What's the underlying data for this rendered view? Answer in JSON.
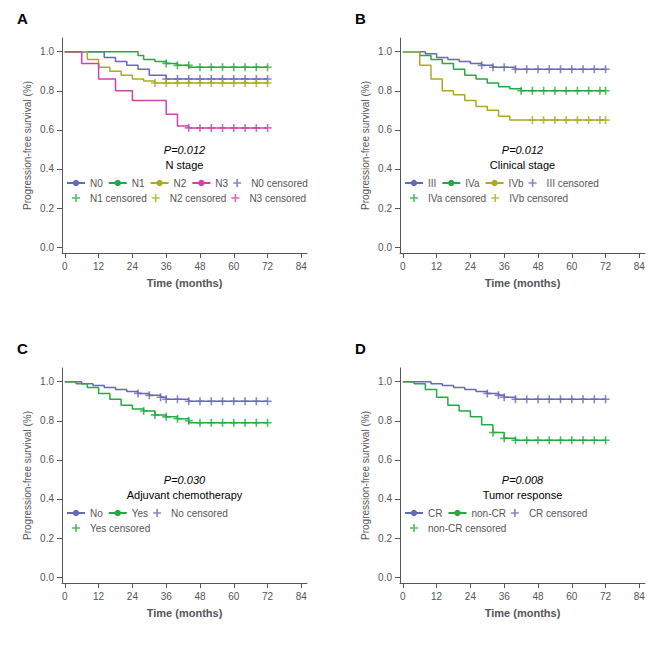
{
  "chart_data": [
    {
      "type": "step",
      "title": "A",
      "xlabel": "Time (months)",
      "ylabel": "Progression-free survival (%)",
      "xlim": [
        -1,
        86
      ],
      "xticks": [
        0,
        12,
        24,
        36,
        48,
        60,
        72,
        84
      ],
      "ylim": [
        -0.03,
        1.07
      ],
      "yticks": [
        {
          "value": 0.0,
          "label": "0.0"
        },
        0.2,
        0.4,
        0.6,
        0.8,
        {
          "value": 1.0,
          "label": "1.0"
        }
      ],
      "grid": false,
      "legend": "lower center",
      "annotations": [
        "P=0.012",
        "N stage"
      ],
      "series": [
        {
          "name": "N0",
          "type": "step",
          "color": "#6868b8",
          "x": [
            0,
            14,
            18,
            22,
            26,
            30,
            36,
            72
          ],
          "values": [
            1.0,
            0.97,
            0.95,
            0.93,
            0.91,
            0.88,
            0.86,
            0.86
          ]
        },
        {
          "name": "N1",
          "type": "step",
          "color": "#22aa44",
          "x": [
            0,
            24,
            26,
            28,
            32,
            36,
            40,
            44,
            72
          ],
          "values": [
            1.0,
            1.0,
            0.98,
            0.96,
            0.95,
            0.94,
            0.93,
            0.92,
            0.92
          ]
        },
        {
          "name": "N2",
          "type": "step",
          "color": "#aaaa22",
          "x": [
            0,
            8,
            12,
            16,
            20,
            24,
            28,
            32,
            72
          ],
          "values": [
            1.0,
            0.96,
            0.92,
            0.9,
            0.88,
            0.86,
            0.85,
            0.84,
            0.84
          ]
        },
        {
          "name": "N3",
          "type": "step",
          "color": "#cc44aa",
          "x": [
            0,
            6,
            12,
            18,
            24,
            30,
            36,
            40,
            44,
            72
          ],
          "values": [
            1.0,
            0.94,
            0.86,
            0.8,
            0.75,
            0.75,
            0.68,
            0.62,
            0.61,
            0.61
          ]
        },
        {
          "name": "N0 censored",
          "type": "scatter",
          "marker": "plus",
          "color": "#6868b8",
          "x": [
            36,
            40,
            44,
            48,
            52,
            56,
            60,
            64,
            68,
            72
          ],
          "values": [
            0.86,
            0.86,
            0.86,
            0.86,
            0.86,
            0.86,
            0.86,
            0.86,
            0.86,
            0.86
          ]
        },
        {
          "name": "N1 censored",
          "type": "scatter",
          "marker": "plus",
          "color": "#22aa44",
          "x": [
            36,
            40,
            44,
            48,
            52,
            56,
            60,
            64,
            68,
            72
          ],
          "values": [
            0.94,
            0.93,
            0.93,
            0.92,
            0.92,
            0.92,
            0.92,
            0.92,
            0.92,
            0.92
          ]
        },
        {
          "name": "N2 censored",
          "type": "scatter",
          "marker": "plus",
          "color": "#aaaa22",
          "x": [
            32,
            36,
            40,
            44,
            48,
            52,
            56,
            60,
            64,
            68,
            72
          ],
          "values": [
            0.84,
            0.84,
            0.84,
            0.84,
            0.84,
            0.84,
            0.84,
            0.84,
            0.84,
            0.84,
            0.84
          ]
        },
        {
          "name": "N3 censored",
          "type": "scatter",
          "marker": "plus",
          "color": "#cc44aa",
          "x": [
            44,
            48,
            52,
            56,
            60,
            64,
            68,
            72
          ],
          "values": [
            0.61,
            0.61,
            0.61,
            0.61,
            0.61,
            0.61,
            0.61,
            0.61
          ]
        }
      ]
    },
    {
      "type": "step",
      "title": "B",
      "xlabel": "Time (months)",
      "ylabel": "Progression-free survival (%)",
      "xlim": [
        -1,
        86
      ],
      "xticks": [
        0,
        12,
        24,
        36,
        48,
        60,
        72,
        84
      ],
      "ylim": [
        -0.03,
        1.07
      ],
      "yticks": [
        {
          "value": 0.0,
          "label": "0.0"
        },
        0.2,
        0.4,
        0.6,
        0.8,
        {
          "value": 1.0,
          "label": "1.0"
        }
      ],
      "grid": false,
      "legend": "lower center",
      "annotations": [
        "P=0.012",
        "Clinical stage"
      ],
      "series": [
        {
          "name": "III",
          "type": "step",
          "color": "#6868b8",
          "x": [
            0,
            8,
            12,
            16,
            20,
            24,
            28,
            32,
            36,
            40,
            72
          ],
          "values": [
            1.0,
            0.99,
            0.97,
            0.96,
            0.95,
            0.94,
            0.93,
            0.92,
            0.92,
            0.91,
            0.91
          ]
        },
        {
          "name": "IVa",
          "type": "step",
          "color": "#22aa44",
          "x": [
            0,
            6,
            10,
            14,
            18,
            22,
            26,
            30,
            34,
            38,
            42,
            72
          ],
          "values": [
            1.0,
            0.98,
            0.96,
            0.94,
            0.91,
            0.88,
            0.86,
            0.84,
            0.82,
            0.81,
            0.8,
            0.8
          ]
        },
        {
          "name": "IVb",
          "type": "step",
          "color": "#aaaa22",
          "x": [
            0,
            6,
            10,
            14,
            18,
            22,
            26,
            30,
            34,
            38,
            44,
            72
          ],
          "values": [
            1.0,
            0.93,
            0.86,
            0.8,
            0.78,
            0.75,
            0.72,
            0.7,
            0.67,
            0.65,
            0.65,
            0.65
          ]
        },
        {
          "name": "III censored",
          "type": "scatter",
          "marker": "plus",
          "color": "#6868b8",
          "x": [
            28,
            32,
            36,
            40,
            44,
            48,
            52,
            56,
            60,
            64,
            68,
            72
          ],
          "values": [
            0.93,
            0.92,
            0.92,
            0.91,
            0.91,
            0.91,
            0.91,
            0.91,
            0.91,
            0.91,
            0.91,
            0.91
          ]
        },
        {
          "name": "IVa censored",
          "type": "scatter",
          "marker": "plus",
          "color": "#22aa44",
          "x": [
            42,
            46,
            50,
            54,
            58,
            62,
            66,
            70,
            72
          ],
          "values": [
            0.8,
            0.8,
            0.8,
            0.8,
            0.8,
            0.8,
            0.8,
            0.8,
            0.8
          ]
        },
        {
          "name": "IVb censored",
          "type": "scatter",
          "marker": "plus",
          "color": "#aaaa22",
          "x": [
            46,
            50,
            54,
            58,
            62,
            66,
            70,
            72
          ],
          "values": [
            0.65,
            0.65,
            0.65,
            0.65,
            0.65,
            0.65,
            0.65,
            0.65
          ]
        }
      ]
    },
    {
      "type": "step",
      "title": "C",
      "xlabel": "Time (months)",
      "ylabel": "Progression-free survival (%)",
      "xlim": [
        -1,
        86
      ],
      "xticks": [
        0,
        12,
        24,
        36,
        48,
        60,
        72,
        84
      ],
      "ylim": [
        -0.03,
        1.07
      ],
      "yticks": [
        {
          "value": 0.0,
          "label": "0.0"
        },
        0.2,
        0.4,
        0.6,
        0.8,
        {
          "value": 1.0,
          "label": "1.0"
        }
      ],
      "grid": false,
      "legend": "lower center",
      "annotations": [
        "P=0.030",
        "Adjuvant chemotherapy"
      ],
      "series": [
        {
          "name": "No",
          "type": "step",
          "color": "#6868b8",
          "x": [
            0,
            6,
            10,
            14,
            18,
            22,
            26,
            30,
            34,
            36,
            40,
            44,
            72
          ],
          "values": [
            1.0,
            0.99,
            0.98,
            0.97,
            0.96,
            0.95,
            0.94,
            0.93,
            0.92,
            0.91,
            0.91,
            0.9,
            0.9
          ]
        },
        {
          "name": "Yes",
          "type": "step",
          "color": "#22aa44",
          "x": [
            0,
            4,
            8,
            12,
            16,
            20,
            24,
            28,
            32,
            36,
            40,
            44,
            72
          ],
          "values": [
            1.0,
            0.99,
            0.97,
            0.94,
            0.91,
            0.88,
            0.86,
            0.85,
            0.83,
            0.82,
            0.81,
            0.79,
            0.79
          ]
        },
        {
          "name": "No censored",
          "type": "scatter",
          "marker": "plus",
          "color": "#6868b8",
          "x": [
            26,
            30,
            34,
            36,
            40,
            44,
            48,
            52,
            56,
            60,
            64,
            68,
            72
          ],
          "values": [
            0.94,
            0.93,
            0.92,
            0.91,
            0.91,
            0.9,
            0.9,
            0.9,
            0.9,
            0.9,
            0.9,
            0.9,
            0.9
          ]
        },
        {
          "name": "Yes censored",
          "type": "scatter",
          "marker": "plus",
          "color": "#22aa44",
          "x": [
            28,
            32,
            36,
            40,
            44,
            48,
            52,
            56,
            60,
            64,
            68,
            72
          ],
          "values": [
            0.85,
            0.83,
            0.82,
            0.81,
            0.8,
            0.79,
            0.79,
            0.79,
            0.79,
            0.79,
            0.79,
            0.79
          ]
        }
      ]
    },
    {
      "type": "step",
      "title": "D",
      "xlabel": "Time (months)",
      "ylabel": "Progression-free survival (%)",
      "xlim": [
        -1,
        86
      ],
      "xticks": [
        0,
        12,
        24,
        36,
        48,
        60,
        72,
        84
      ],
      "ylim": [
        -0.03,
        1.07
      ],
      "yticks": [
        {
          "value": 0.0,
          "label": "0.0"
        },
        0.2,
        0.4,
        0.6,
        0.8,
        {
          "value": 1.0,
          "label": "1.0"
        }
      ],
      "grid": false,
      "legend": "lower center",
      "annotations": [
        "P=0.008",
        "Tumor response"
      ],
      "series": [
        {
          "name": "CR",
          "type": "step",
          "color": "#6868b8",
          "x": [
            0,
            6,
            10,
            14,
            18,
            22,
            26,
            30,
            34,
            36,
            40,
            72
          ],
          "values": [
            1.0,
            1.0,
            0.99,
            0.98,
            0.97,
            0.96,
            0.95,
            0.94,
            0.93,
            0.92,
            0.91,
            0.91
          ]
        },
        {
          "name": "non-CR",
          "type": "step",
          "color": "#22aa44",
          "x": [
            0,
            4,
            8,
            12,
            16,
            20,
            24,
            28,
            32,
            36,
            40,
            72
          ],
          "values": [
            1.0,
            0.99,
            0.96,
            0.92,
            0.88,
            0.85,
            0.82,
            0.78,
            0.74,
            0.71,
            0.7,
            0.7
          ]
        },
        {
          "name": "CR censored",
          "type": "scatter",
          "marker": "plus",
          "color": "#6868b8",
          "x": [
            30,
            34,
            36,
            40,
            44,
            48,
            52,
            56,
            60,
            64,
            68,
            72
          ],
          "values": [
            0.94,
            0.93,
            0.92,
            0.91,
            0.91,
            0.91,
            0.91,
            0.91,
            0.91,
            0.91,
            0.91,
            0.91
          ]
        },
        {
          "name": "non-CR censored",
          "type": "scatter",
          "marker": "plus",
          "color": "#22aa44",
          "x": [
            32,
            36,
            40,
            44,
            48,
            52,
            56,
            60,
            64,
            68,
            72
          ],
          "values": [
            0.74,
            0.71,
            0.7,
            0.7,
            0.7,
            0.7,
            0.7,
            0.7,
            0.7,
            0.7,
            0.7
          ]
        }
      ]
    }
  ]
}
